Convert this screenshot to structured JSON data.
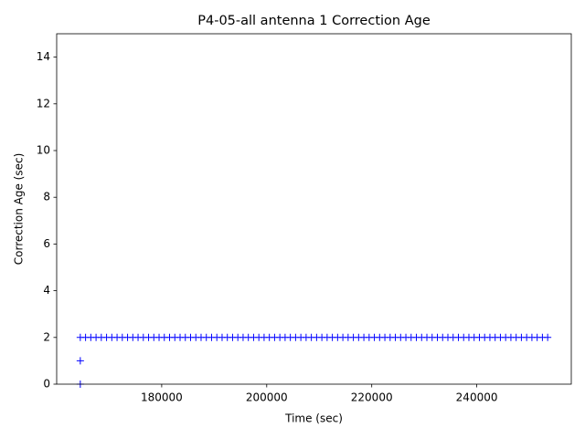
{
  "chart_data": {
    "type": "scatter",
    "title": "P4-05-all antenna 1 Correction Age",
    "x_label": "Time (sec)",
    "y_label": "Correction Age (sec)",
    "series": [
      {
        "color": "#0000ff",
        "x": [
          164500,
          164500,
          164500,
          165500,
          166500,
          167500,
          168500,
          169500,
          170500,
          171500,
          172500,
          173500,
          174500,
          175500,
          176500,
          177500,
          178500,
          179500,
          180500,
          181500,
          182500,
          183500,
          184500,
          185500,
          186500,
          187500,
          188500,
          189500,
          190500,
          191500,
          192500,
          193500,
          194500,
          195500,
          196500,
          197500,
          198500,
          199500,
          200500,
          201500,
          202500,
          203500,
          204500,
          205500,
          206500,
          207500,
          208500,
          209500,
          210500,
          211500,
          212500,
          213500,
          214500,
          215500,
          216500,
          217500,
          218500,
          219500,
          220500,
          221500,
          222500,
          223500,
          224500,
          225500,
          226500,
          227500,
          228500,
          229500,
          230500,
          231500,
          232500,
          233500,
          234500,
          235500,
          236500,
          237500,
          238500,
          239500,
          240500,
          241500,
          242500,
          243500,
          244500,
          245500,
          246500,
          247500,
          248500,
          249500,
          250500,
          251500,
          252500,
          253500
        ],
        "values": [
          0,
          1,
          2,
          2,
          2,
          2,
          2,
          2,
          2,
          2,
          2,
          2,
          2,
          2,
          2,
          2,
          2,
          2,
          2,
          2,
          2,
          2,
          2,
          2,
          2,
          2,
          2,
          2,
          2,
          2,
          2,
          2,
          2,
          2,
          2,
          2,
          2,
          2,
          2,
          2,
          2,
          2,
          2,
          2,
          2,
          2,
          2,
          2,
          2,
          2,
          2,
          2,
          2,
          2,
          2,
          2,
          2,
          2,
          2,
          2,
          2,
          2,
          2,
          2,
          2,
          2,
          2,
          2,
          2,
          2,
          2,
          2,
          2,
          2,
          2,
          2,
          2,
          2,
          2,
          2,
          2,
          2,
          2,
          2,
          2,
          2,
          2,
          2,
          2,
          2,
          2,
          2
        ]
      }
    ],
    "xlim": [
      160000,
      258000
    ],
    "xticks": [
      180000,
      200000,
      220000,
      240000
    ],
    "ylim": [
      0,
      15
    ],
    "yticks": [
      0,
      2,
      4,
      6,
      8,
      10,
      12,
      14
    ]
  }
}
